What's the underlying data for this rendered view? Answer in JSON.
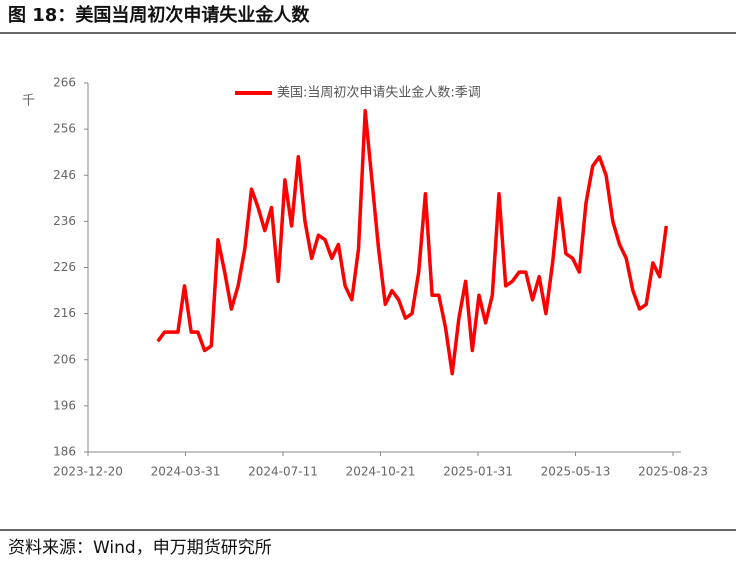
{
  "title": "图 18：美国当周初次申请失业金人数",
  "source": "资料来源：Wind，申万期货研究所",
  "chart_data": {
    "type": "line",
    "y_label": "千",
    "x": [
      "2024-03-02",
      "2024-03-09",
      "2024-03-16",
      "2024-03-23",
      "2024-03-30",
      "2024-04-06",
      "2024-04-13",
      "2024-04-20",
      "2024-04-27",
      "2024-05-04",
      "2024-05-11",
      "2024-05-18",
      "2024-05-25",
      "2024-06-01",
      "2024-06-08",
      "2024-06-15",
      "2024-06-22",
      "2024-06-29",
      "2024-07-06",
      "2024-07-13",
      "2024-07-20",
      "2024-07-27",
      "2024-08-03",
      "2024-08-10",
      "2024-08-17",
      "2024-08-24",
      "2024-08-31",
      "2024-09-07",
      "2024-09-14",
      "2024-09-21",
      "2024-09-28",
      "2024-10-05",
      "2024-10-12",
      "2024-10-19",
      "2024-10-26",
      "2024-11-02",
      "2024-11-09",
      "2024-11-16",
      "2024-11-23",
      "2024-11-30",
      "2024-12-07",
      "2024-12-14",
      "2024-12-21",
      "2024-12-28",
      "2025-01-04",
      "2025-01-11",
      "2025-01-18",
      "2025-01-25",
      "2025-02-01",
      "2025-02-08",
      "2025-02-15",
      "2025-02-22",
      "2025-03-01",
      "2025-03-08",
      "2025-03-15",
      "2025-03-22",
      "2025-03-29",
      "2025-04-05",
      "2025-04-12",
      "2025-04-19",
      "2025-04-26",
      "2025-05-03",
      "2025-05-10",
      "2025-05-17",
      "2025-05-24",
      "2025-05-31",
      "2025-06-07",
      "2025-06-14",
      "2025-06-21",
      "2025-06-28",
      "2025-07-05",
      "2025-07-12",
      "2025-07-19",
      "2025-07-26",
      "2025-08-02",
      "2025-08-09",
      "2025-08-16"
    ],
    "series": [
      {
        "name": "美国:当周初次申请失业金人数:季调",
        "color": "#ff0000",
        "values": [
          210,
          212,
          212,
          212,
          222,
          212,
          212,
          208,
          209,
          232,
          225,
          217,
          222,
          230,
          243,
          239,
          234,
          239,
          223,
          245,
          235,
          250,
          236,
          228,
          233,
          232,
          228,
          231,
          222,
          219,
          230,
          260,
          245,
          230,
          218,
          221,
          219,
          215,
          216,
          225,
          242,
          220,
          220,
          213,
          203,
          215,
          223,
          208,
          220,
          214,
          220,
          242,
          222,
          223,
          225,
          225,
          219,
          224,
          216,
          227,
          241,
          229,
          228,
          225,
          240,
          248,
          250,
          246,
          236,
          231,
          228,
          221,
          217,
          218,
          227,
          224,
          235
        ]
      }
    ],
    "xlim": [
      "2023-12-20",
      "2025-08-23"
    ],
    "xticks": [
      "2023-12-20",
      "2024-03-31",
      "2024-07-11",
      "2024-10-21",
      "2025-01-31",
      "2025-05-13",
      "2025-08-23"
    ],
    "ylim": [
      186,
      266
    ],
    "yticks": [
      186,
      196,
      206,
      216,
      226,
      236,
      246,
      256,
      266
    ],
    "grid": false,
    "legend": "top"
  }
}
